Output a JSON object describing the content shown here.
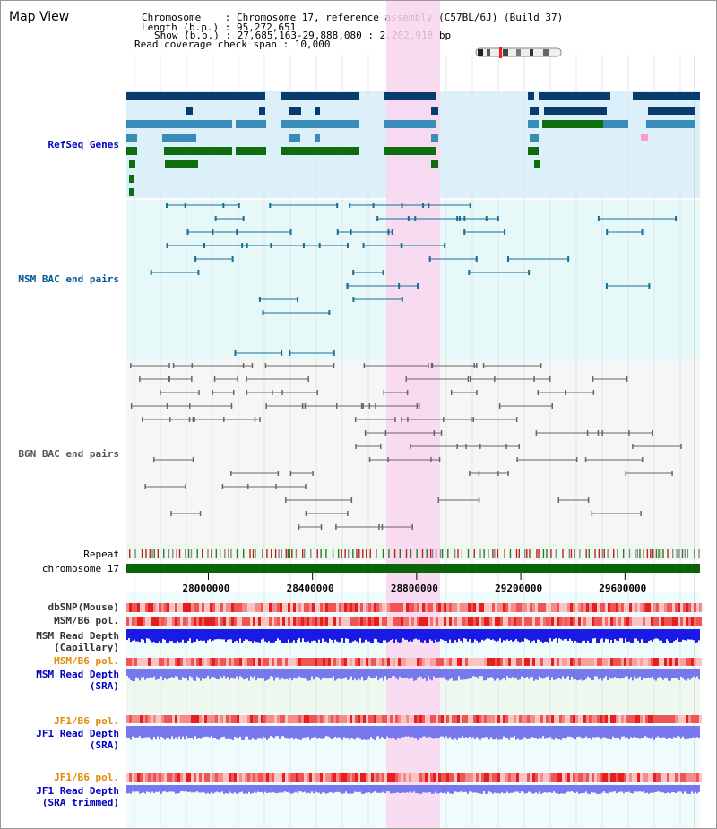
{
  "title": "Map View",
  "info": {
    "chromosome": "Chromosome    : Chromosome 17, reference assembly (C57BL/6J) (Build 37)",
    "length": "Length (b.p.) : 95,272,651",
    "show": "Show (b.p.) : 27,685,163-29,888,080 : 2,202,918 bp",
    "span": "Read coverage check span : 10,000"
  },
  "tracks": [
    {
      "id": "refseq",
      "label": "RefSeq Genes",
      "color": "#0000c0"
    },
    {
      "id": "msm-bac",
      "label": "MSM BAC end pairs",
      "color": "#005a9c"
    },
    {
      "id": "b6n-bac",
      "label": "B6N BAC end pairs",
      "color": "#555555"
    },
    {
      "id": "repeat",
      "label": "Repeat",
      "color": "#000000"
    },
    {
      "id": "chrom",
      "label": "chromosome 17",
      "color": "#000000"
    },
    {
      "id": "dbsnp",
      "label": "dbSNP(Mouse)",
      "color": "#333333"
    },
    {
      "id": "msm-b6-pol-1",
      "label": "MSM/B6 pol.",
      "color": "#333333"
    },
    {
      "id": "msm-depth-cap-1",
      "label": "MSM Read Depth",
      "color": "#333333"
    },
    {
      "id": "msm-depth-cap-2",
      "label": "(Capillary)",
      "color": "#333333"
    },
    {
      "id": "msm-b6-pol-2",
      "label": "MSM/B6 pol.",
      "color": "#e08a00"
    },
    {
      "id": "msm-depth-sra-1",
      "label": "MSM Read Depth",
      "color": "#0000c0"
    },
    {
      "id": "msm-depth-sra-2",
      "label": "(SRA)",
      "color": "#0000c0"
    },
    {
      "id": "jf1-pol-1",
      "label": "JF1/B6 pol.",
      "color": "#e08a00"
    },
    {
      "id": "jf1-depth-1",
      "label": "JF1 Read Depth",
      "color": "#0000c0"
    },
    {
      "id": "jf1-depth-2",
      "label": "(SRA)",
      "color": "#0000c0"
    },
    {
      "id": "jf1-pol-2",
      "label": "JF1/B6 pol.",
      "color": "#e08a00"
    },
    {
      "id": "jf1-trim-1",
      "label": "JF1 Read Depth",
      "color": "#0000c0"
    },
    {
      "id": "jf1-trim-2",
      "label": "(SRA trimmed)",
      "color": "#0000c0"
    }
  ],
  "axis": {
    "ticks": [
      "28000000",
      "28400000",
      "28800000",
      "29200000",
      "29600000"
    ],
    "range_start": 27685163,
    "range_end": 29888080
  },
  "colors": {
    "highlight": "#f9d6f0",
    "refseq_bg": "#dcf0fa",
    "gene_dark": "#083c6e",
    "gene_mid": "#3a8cb8",
    "gene_green": "#0e6e0e",
    "msm_line": "#1a6e96",
    "b6n_line": "#666666",
    "chrom_bar": "#0a640a",
    "snp_red": "#ee2222",
    "depth_blue": "#1a1ae6",
    "depth_light": "#7777ee"
  }
}
